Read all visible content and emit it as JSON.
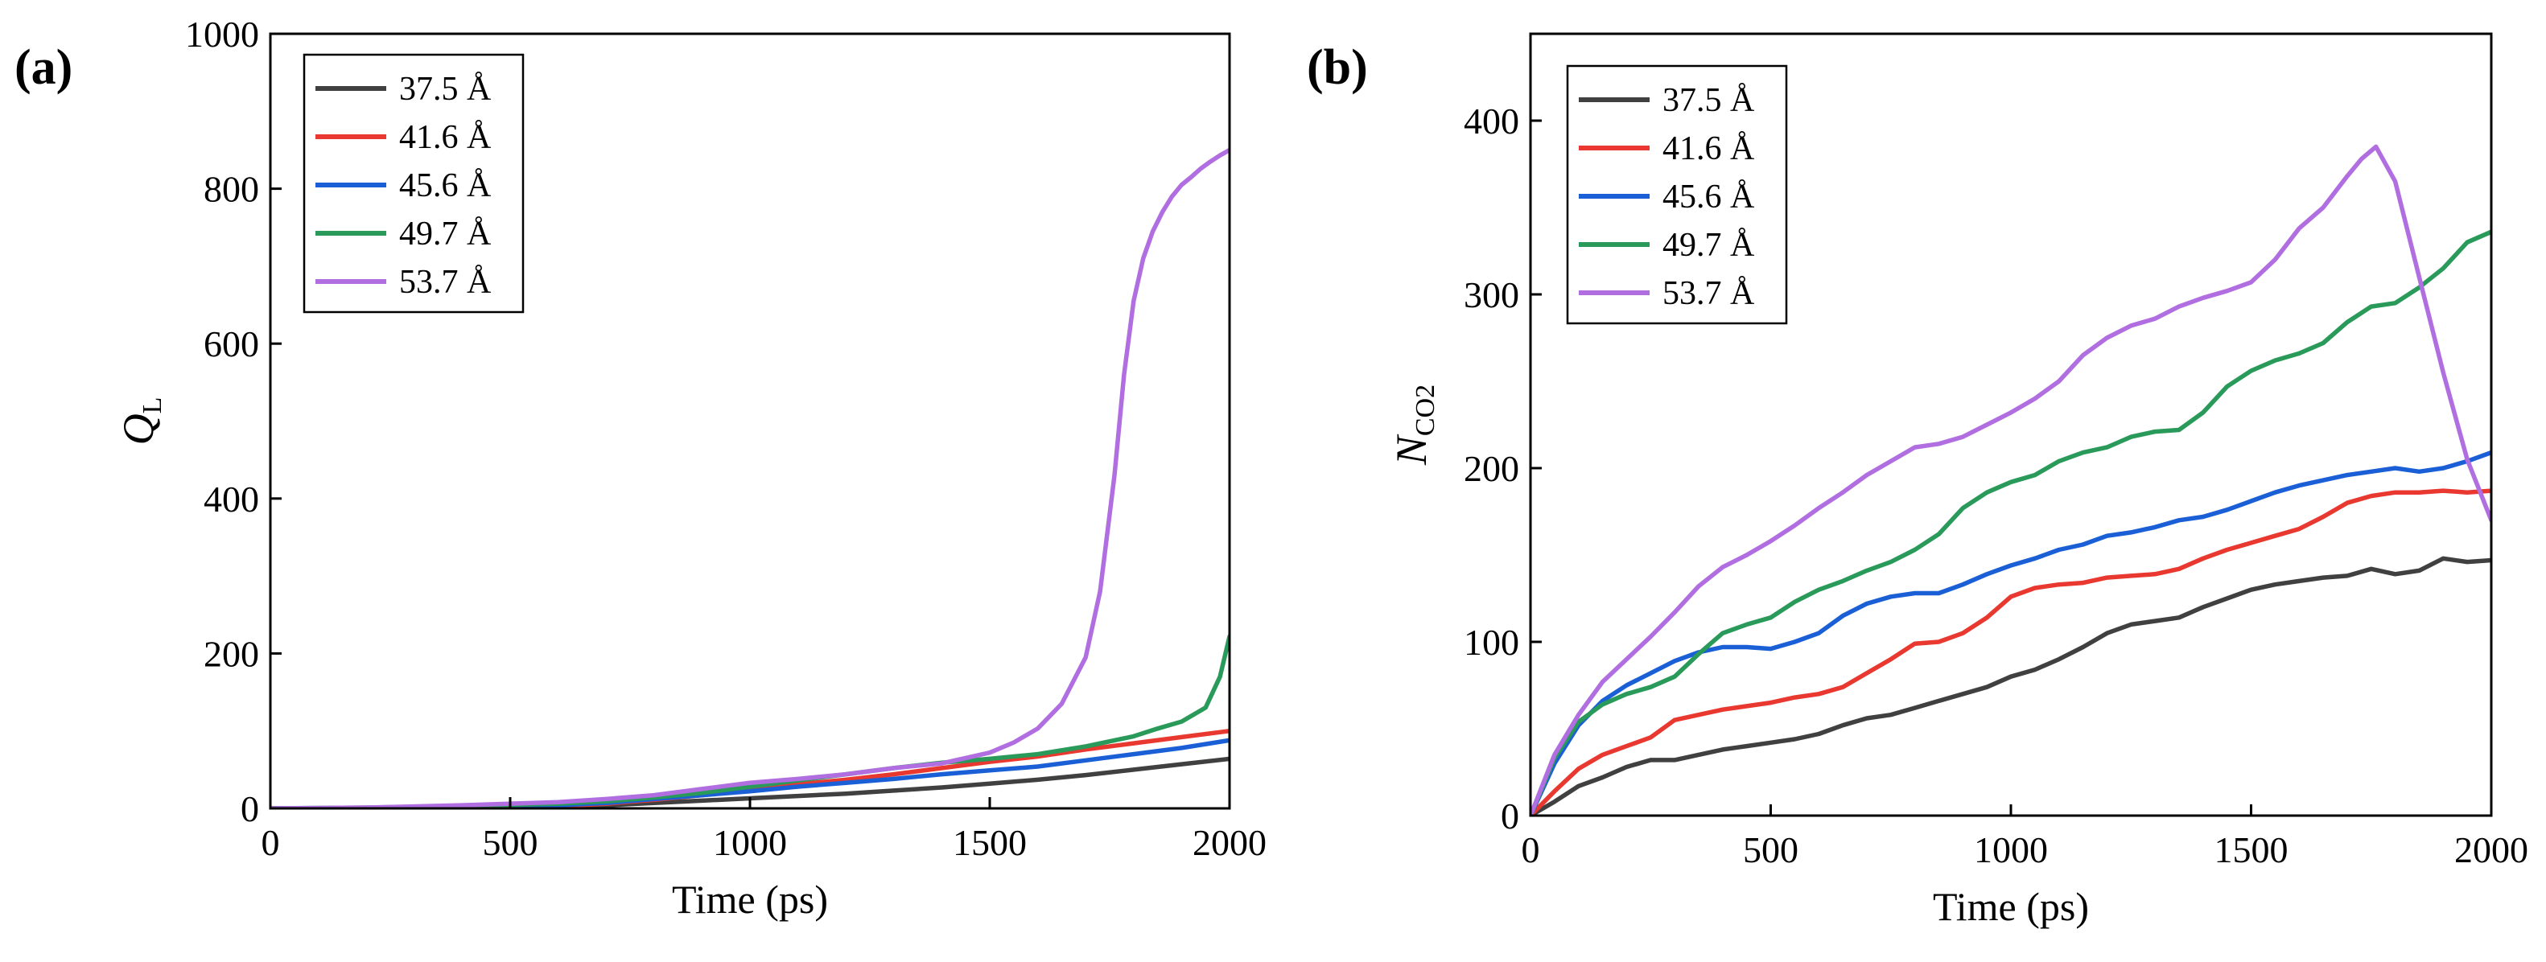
{
  "chart_data": [
    {
      "type": "line",
      "panel_label": "(a)",
      "xlabel": "Time (ps)",
      "ylabel": "Q",
      "ylabel_sub": "L",
      "xlim": [
        0,
        2000
      ],
      "ylim": [
        0,
        1000
      ],
      "xticks": [
        0,
        500,
        1000,
        1500,
        2000
      ],
      "yticks": [
        0,
        200,
        400,
        600,
        800,
        1000
      ],
      "legend_position": "top-left",
      "series": [
        {
          "name": "37.5 Å",
          "color": "#404040",
          "x": [
            0,
            200,
            400,
            600,
            700,
            800,
            900,
            1000,
            1100,
            1200,
            1300,
            1400,
            1500,
            1600,
            1700,
            1800,
            1900,
            2000
          ],
          "y": [
            0,
            0,
            1,
            2,
            4,
            7,
            10,
            13,
            16,
            19,
            23,
            27,
            32,
            37,
            43,
            50,
            57,
            64
          ]
        },
        {
          "name": "41.6 Å",
          "color": "#e8382f",
          "x": [
            0,
            200,
            400,
            600,
            700,
            800,
            900,
            1000,
            1100,
            1200,
            1300,
            1400,
            1500,
            1600,
            1700,
            1800,
            1900,
            2000
          ],
          "y": [
            0,
            0,
            2,
            3,
            6,
            11,
            17,
            24,
            31,
            37,
            44,
            52,
            60,
            67,
            76,
            84,
            92,
            100
          ]
        },
        {
          "name": "45.6 Å",
          "color": "#1a5fd6",
          "x": [
            0,
            200,
            400,
            600,
            700,
            800,
            900,
            1000,
            1100,
            1200,
            1300,
            1400,
            1500,
            1600,
            1700,
            1800,
            1900,
            2000
          ],
          "y": [
            0,
            0,
            2,
            4,
            7,
            12,
            17,
            22,
            28,
            33,
            38,
            44,
            49,
            54,
            62,
            70,
            78,
            88
          ]
        },
        {
          "name": "49.7 Å",
          "color": "#2a9a5a",
          "x": [
            0,
            200,
            400,
            600,
            700,
            800,
            900,
            1000,
            1100,
            1200,
            1300,
            1400,
            1500,
            1600,
            1700,
            1800,
            1850,
            1900,
            1950,
            1980,
            2000
          ],
          "y": [
            0,
            1,
            3,
            6,
            9,
            14,
            20,
            28,
            36,
            44,
            52,
            59,
            64,
            70,
            80,
            93,
            103,
            112,
            130,
            170,
            222
          ]
        },
        {
          "name": "53.7 Å",
          "color": "#b06ee0",
          "x": [
            0,
            200,
            400,
            600,
            700,
            800,
            900,
            1000,
            1100,
            1200,
            1300,
            1400,
            1500,
            1550,
            1600,
            1650,
            1700,
            1730,
            1760,
            1780,
            1800,
            1820,
            1840,
            1860,
            1880,
            1900,
            1920,
            1940,
            1960,
            1980,
            2000
          ],
          "y": [
            0,
            1,
            4,
            8,
            12,
            17,
            25,
            33,
            38,
            44,
            52,
            58,
            72,
            85,
            103,
            135,
            195,
            280,
            430,
            560,
            655,
            710,
            745,
            770,
            790,
            805,
            815,
            826,
            835,
            843,
            850
          ]
        }
      ]
    },
    {
      "type": "line",
      "panel_label": "(b)",
      "xlabel": "Time (ps)",
      "ylabel": "N",
      "ylabel_sub": "CO2",
      "xlim": [
        0,
        2000
      ],
      "ylim": [
        0,
        450
      ],
      "xticks": [
        0,
        500,
        1000,
        1500,
        2000
      ],
      "yticks": [
        0,
        100,
        200,
        300,
        400
      ],
      "legend_position": "top-left",
      "series": [
        {
          "name": "37.5 Å",
          "color": "#404040",
          "x": [
            0,
            50,
            100,
            150,
            200,
            250,
            300,
            350,
            400,
            450,
            500,
            550,
            600,
            650,
            700,
            750,
            800,
            850,
            900,
            950,
            1000,
            1050,
            1100,
            1150,
            1200,
            1250,
            1300,
            1350,
            1400,
            1450,
            1500,
            1550,
            1600,
            1650,
            1700,
            1750,
            1800,
            1850,
            1900,
            1950,
            2000
          ],
          "y": [
            0,
            8,
            17,
            22,
            28,
            32,
            32,
            35,
            38,
            40,
            42,
            44,
            47,
            52,
            56,
            58,
            62,
            66,
            70,
            74,
            80,
            84,
            90,
            97,
            105,
            110,
            112,
            114,
            120,
            125,
            130,
            133,
            135,
            137,
            138,
            142,
            139,
            141,
            148,
            146,
            147
          ]
        },
        {
          "name": "41.6 Å",
          "color": "#e8382f",
          "x": [
            0,
            50,
            100,
            150,
            200,
            250,
            300,
            350,
            400,
            450,
            500,
            550,
            600,
            650,
            700,
            750,
            800,
            850,
            900,
            950,
            1000,
            1050,
            1100,
            1150,
            1200,
            1250,
            1300,
            1350,
            1400,
            1450,
            1500,
            1550,
            1600,
            1650,
            1700,
            1750,
            1800,
            1850,
            1900,
            1950,
            2000
          ],
          "y": [
            0,
            14,
            27,
            35,
            40,
            45,
            55,
            58,
            61,
            63,
            65,
            68,
            70,
            74,
            82,
            90,
            99,
            100,
            105,
            114,
            126,
            131,
            133,
            134,
            137,
            138,
            139,
            142,
            148,
            153,
            157,
            161,
            165,
            172,
            180,
            184,
            186,
            186,
            187,
            186,
            187
          ]
        },
        {
          "name": "45.6 Å",
          "color": "#1a5fd6",
          "x": [
            0,
            50,
            100,
            150,
            200,
            250,
            300,
            350,
            400,
            450,
            500,
            550,
            600,
            650,
            700,
            750,
            800,
            850,
            900,
            950,
            1000,
            1050,
            1100,
            1150,
            1200,
            1250,
            1300,
            1350,
            1400,
            1450,
            1500,
            1550,
            1600,
            1650,
            1700,
            1750,
            1800,
            1850,
            1900,
            1950,
            2000
          ],
          "y": [
            0,
            30,
            52,
            66,
            75,
            82,
            89,
            94,
            97,
            97,
            96,
            100,
            105,
            115,
            122,
            126,
            128,
            128,
            133,
            139,
            144,
            148,
            153,
            156,
            161,
            163,
            166,
            170,
            172,
            176,
            181,
            186,
            190,
            193,
            196,
            198,
            200,
            198,
            200,
            204,
            209
          ]
        },
        {
          "name": "49.7 Å",
          "color": "#2a9a5a",
          "x": [
            0,
            50,
            100,
            150,
            200,
            250,
            300,
            350,
            400,
            450,
            500,
            550,
            600,
            650,
            700,
            750,
            800,
            850,
            900,
            950,
            1000,
            1050,
            1100,
            1150,
            1200,
            1250,
            1300,
            1350,
            1400,
            1450,
            1500,
            1550,
            1600,
            1650,
            1700,
            1750,
            1800,
            1850,
            1900,
            1950,
            2000
          ],
          "y": [
            0,
            33,
            54,
            64,
            70,
            74,
            80,
            93,
            105,
            110,
            114,
            123,
            130,
            135,
            141,
            146,
            153,
            162,
            177,
            186,
            192,
            196,
            204,
            209,
            212,
            218,
            221,
            222,
            232,
            247,
            256,
            262,
            266,
            272,
            284,
            293,
            295,
            304,
            315,
            330,
            336
          ]
        },
        {
          "name": "53.7 Å",
          "color": "#b06ee0",
          "x": [
            0,
            50,
            100,
            150,
            200,
            250,
            300,
            350,
            400,
            450,
            500,
            550,
            600,
            650,
            700,
            750,
            800,
            850,
            900,
            950,
            1000,
            1050,
            1100,
            1150,
            1200,
            1250,
            1300,
            1350,
            1400,
            1450,
            1500,
            1550,
            1600,
            1650,
            1700,
            1730,
            1760,
            1800,
            1850,
            1900,
            1950,
            2000
          ],
          "y": [
            0,
            35,
            58,
            77,
            90,
            103,
            117,
            132,
            143,
            150,
            158,
            167,
            177,
            186,
            196,
            204,
            212,
            214,
            218,
            225,
            232,
            240,
            250,
            265,
            275,
            282,
            286,
            293,
            298,
            302,
            307,
            320,
            338,
            350,
            368,
            378,
            385,
            365,
            310,
            255,
            205,
            170
          ]
        }
      ]
    }
  ]
}
